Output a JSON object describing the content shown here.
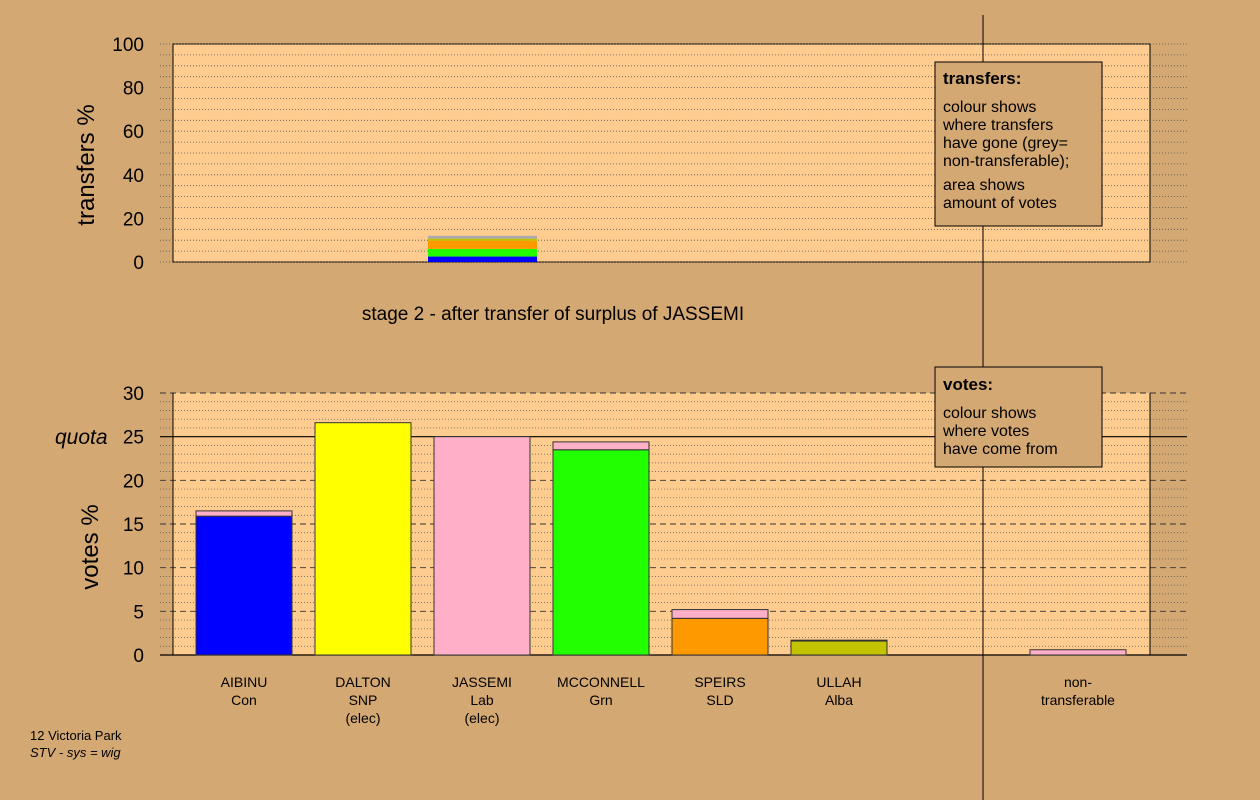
{
  "colors": {
    "background": "#D4A873",
    "panel": "#FFCC8F",
    "grid": "#555555",
    "axis": "#000000"
  },
  "stage_title": "stage 2 - after transfer of surplus of JASSEMI",
  "footer": {
    "ward": "12 Victoria Park",
    "system": "STV - sys = wig"
  },
  "chart_data": [
    {
      "type": "bar",
      "name": "transfers",
      "ylabel": "transfers %",
      "ylim": [
        0,
        100
      ],
      "yticks": [
        0,
        20,
        40,
        60,
        80,
        100
      ],
      "grid": "dotted every 5",
      "legend": {
        "position": "top-right",
        "title": "transfers:",
        "lines1": [
          "colour shows",
          "where transfers",
          "have gone (grey=",
          "non-transferable);"
        ],
        "lines2": [
          "area shows",
          "amount of votes"
        ]
      },
      "bars": [
        {
          "candidate": "JASSEMI",
          "segments": [
            {
              "from_party": "Con",
              "value": 2.5,
              "color": "#0000FF"
            },
            {
              "from_party": "Grn",
              "value": 3.5,
              "color": "#22FF00"
            },
            {
              "from_party": "SLD",
              "value": 3.8,
              "color": "#FF9900"
            },
            {
              "from_party": "Alba",
              "value": 0.9,
              "color": "#C3C300"
            },
            {
              "from_party": "non-transferable",
              "value": 1.3,
              "color": "#AAAAAA"
            }
          ]
        }
      ]
    },
    {
      "type": "bar",
      "name": "votes",
      "ylabel": "votes %",
      "ylim": [
        0,
        30
      ],
      "yticks": [
        0,
        5,
        10,
        15,
        20,
        25,
        30
      ],
      "quota": 25,
      "quota_label": "quota",
      "grid": "dashed every 5, dotted every 1",
      "legend": {
        "position": "top-right",
        "title": "votes:",
        "lines1": [
          "colour shows",
          "where votes",
          "have come from"
        ]
      },
      "categories": [
        {
          "name": "AIBINU",
          "party": "Con",
          "status": ""
        },
        {
          "name": "DALTON",
          "party": "SNP",
          "status": "(elec)"
        },
        {
          "name": "JASSEMI",
          "party": "Lab",
          "status": "(elec)"
        },
        {
          "name": "MCCONNELL",
          "party": "Grn",
          "status": ""
        },
        {
          "name": "SPEIRS",
          "party": "SLD",
          "status": ""
        },
        {
          "name": "ULLAH",
          "party": "Alba",
          "status": ""
        },
        {
          "name": "non-",
          "party": "transferable",
          "status": ""
        }
      ],
      "bars": [
        {
          "segments": [
            {
              "source": "Con",
              "value": 15.9,
              "color": "#0000FF"
            },
            {
              "source": "Lab",
              "value": 0.6,
              "color": "#FFB0C8"
            }
          ]
        },
        {
          "segments": [
            {
              "source": "SNP",
              "value": 26.6,
              "color": "#FFFF00"
            }
          ]
        },
        {
          "segments": [
            {
              "source": "Lab",
              "value": 25.0,
              "color": "#FFB0C8"
            }
          ]
        },
        {
          "segments": [
            {
              "source": "Grn",
              "value": 23.5,
              "color": "#22FF00"
            },
            {
              "source": "Lab",
              "value": 0.9,
              "color": "#FFB0C8"
            }
          ]
        },
        {
          "segments": [
            {
              "source": "SLD",
              "value": 4.2,
              "color": "#FF9900"
            },
            {
              "source": "Lab",
              "value": 1.0,
              "color": "#FFB0C8"
            }
          ]
        },
        {
          "segments": [
            {
              "source": "Alba",
              "value": 1.6,
              "color": "#C3C300"
            },
            {
              "source": "Lab",
              "value": 0.1,
              "color": "#FFB0C8"
            }
          ]
        },
        {
          "segments": [
            {
              "source": "Lab",
              "value": 0.6,
              "color": "#FFB0C8"
            }
          ]
        }
      ]
    }
  ]
}
